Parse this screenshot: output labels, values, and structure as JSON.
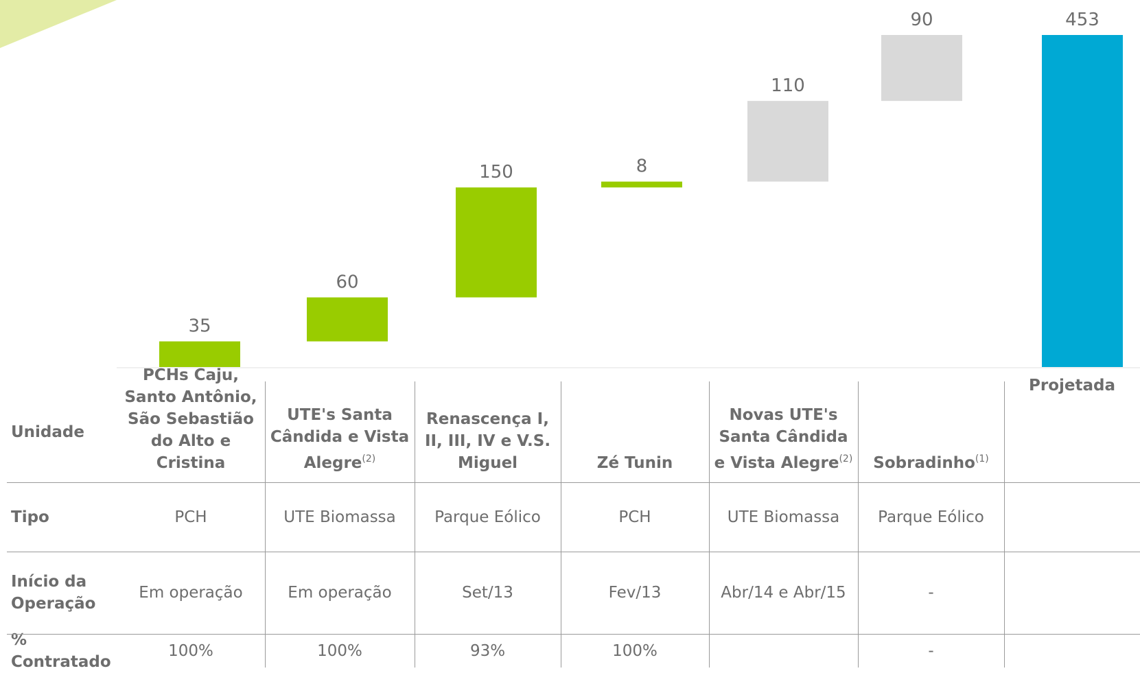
{
  "chart_data": {
    "type": "waterfall",
    "categories": [
      {
        "name": "PCHs Caju, Santo Antônio, São Sebastião do Alto e Cristina"
      },
      {
        "name": "UTE's Santa Cândida e Vista Alegre",
        "note": "(2)"
      },
      {
        "name": "Renascença I, II, III, IV e V.S. Miguel"
      },
      {
        "name": "Zé Tunin"
      },
      {
        "name": "Novas UTE's Santa Cândida e Vista Alegre",
        "note": "(2)"
      },
      {
        "name": "Sobradinho",
        "note": "(1)"
      },
      {
        "name": "Projetada"
      }
    ],
    "values": [
      35,
      60,
      150,
      8,
      110,
      90,
      453
    ],
    "colors": [
      "#99cc00",
      "#99cc00",
      "#99cc00",
      "#99cc00",
      "#d9d9d9",
      "#d9d9d9",
      "#00a9d4"
    ],
    "total_index": 6,
    "table": {
      "header_label": "Unidade",
      "rows": [
        {
          "label": "Tipo",
          "cells": [
            "PCH",
            "UTE Biomassa",
            "Parque Eólico",
            "PCH",
            "UTE Biomassa",
            "Parque Eólico",
            null
          ]
        },
        {
          "label": "Início da Operação",
          "cells": [
            "Em operação",
            "Em operação",
            "Set/13",
            "Fev/13",
            "Abr/14 e Abr/15",
            "-",
            null
          ]
        },
        {
          "label": "% Contratado",
          "cells": [
            "100%",
            "100%",
            "93%",
            "100%",
            null,
            "-",
            null
          ]
        }
      ]
    }
  }
}
